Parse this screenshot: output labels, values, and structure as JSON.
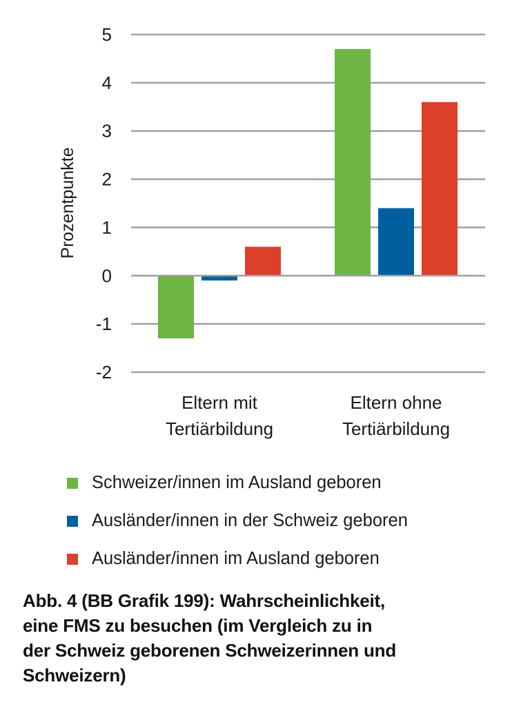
{
  "chart_data": {
    "type": "bar",
    "title": "",
    "xlabel": "",
    "ylabel": "Prozentpunkte",
    "ylim": [
      -2,
      5
    ],
    "yticks": [
      5,
      4,
      3,
      2,
      1,
      0,
      -1,
      -2
    ],
    "grid": true,
    "categories": [
      [
        "Eltern mit",
        "Tertiärbildung"
      ],
      [
        "Eltern ohne",
        "Tertiärbildung"
      ]
    ],
    "series": [
      {
        "name": "Schweizer/innen im Ausland geboren",
        "color": "#6db544",
        "values": [
          -1.3,
          4.7
        ]
      },
      {
        "name": "Ausländer/innen in der Schweiz geboren",
        "color": "#00609f",
        "values": [
          -0.1,
          1.4
        ]
      },
      {
        "name": "Ausländer/innen im Ausland geboren",
        "color": "#dc3f2a",
        "values": [
          0.6,
          3.6
        ]
      }
    ],
    "legend_position": "bottom"
  },
  "caption": {
    "lines": [
      "Abb. 4 (BB Grafik 199): Wahrscheinlichkeit,",
      "eine FMS zu besuchen (im Vergleich zu in",
      "der Schweiz geborenen Schweizerinnen und",
      "Schweizern)"
    ]
  }
}
